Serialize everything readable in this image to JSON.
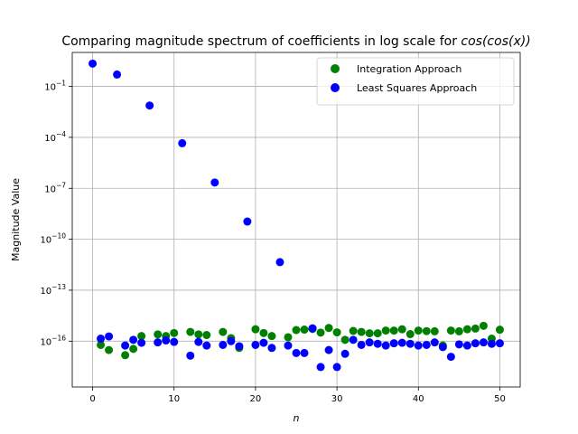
{
  "chart_data": {
    "type": "scatter",
    "title_text": "Comparing magnitude spectrum of coefficients in log scale for ",
    "title_math": "cos(cos(x))",
    "xlabel": "n",
    "ylabel": "Magnitude Value",
    "y_scale": "log",
    "xlim": [
      -2.5,
      52.5
    ],
    "ylim": [
      2e-19,
      10.0
    ],
    "x_ticks": [
      0,
      10,
      20,
      30,
      40,
      50
    ],
    "y_ticks": [
      {
        "value": 0.1,
        "base": "10",
        "exp": "−1"
      },
      {
        "value": 0.0001,
        "base": "10",
        "exp": "−4"
      },
      {
        "value": 1e-07,
        "base": "10",
        "exp": "−7"
      },
      {
        "value": 1e-10,
        "base": "10",
        "exp": "−10"
      },
      {
        "value": 1e-13,
        "base": "10",
        "exp": "−13"
      },
      {
        "value": 1e-16,
        "base": "10",
        "exp": "−16"
      }
    ],
    "grid": true,
    "legend_position": "top-right",
    "series": [
      {
        "name": "Integration Approach",
        "color": "#008000",
        "x": [
          1,
          2,
          4,
          5,
          6,
          8,
          9,
          10,
          12,
          13,
          14,
          16,
          17,
          18,
          20,
          21,
          22,
          24,
          25,
          26,
          27,
          28,
          29,
          30,
          31,
          32,
          33,
          34,
          35,
          36,
          37,
          38,
          39,
          40,
          41,
          42,
          43,
          44,
          45,
          46,
          47,
          48,
          49,
          50
        ],
        "y": [
          6e-17,
          3e-17,
          1.5e-17,
          3.5e-17,
          2e-16,
          2.5e-16,
          2e-16,
          3e-16,
          3.5e-16,
          2.5e-16,
          2.3e-16,
          3.5e-16,
          1.5e-16,
          4e-17,
          5e-16,
          3e-16,
          2e-16,
          1.7e-16,
          4.5e-16,
          4.8e-16,
          5.2e-16,
          3.2e-16,
          6e-16,
          3.3e-16,
          1.2e-16,
          4e-16,
          3.5e-16,
          2.9e-16,
          2.9e-16,
          4.2e-16,
          4.2e-16,
          5e-16,
          2.6e-16,
          4.2e-16,
          3.9e-16,
          3.8e-16,
          5.5e-17,
          4.2e-16,
          3.8e-16,
          5e-16,
          5.5e-16,
          8e-16,
          1.4e-16,
          4.7e-16
        ]
      },
      {
        "name": "Least Squares Approach",
        "color": "#0000ff",
        "x": [
          0,
          1,
          2,
          3,
          4,
          5,
          6,
          7,
          8,
          9,
          10,
          11,
          12,
          13,
          14,
          15,
          16,
          17,
          18,
          19,
          20,
          21,
          22,
          23,
          24,
          25,
          26,
          27,
          28,
          29,
          30,
          31,
          32,
          33,
          34,
          35,
          36,
          37,
          38,
          39,
          40,
          41,
          42,
          43,
          44,
          45,
          46,
          47,
          48,
          49,
          50
        ],
        "y": [
          2.2,
          1.4e-16,
          1.9e-16,
          0.5,
          5.5e-17,
          1.2e-16,
          8e-17,
          0.0075,
          8.5e-17,
          1.1e-16,
          9e-17,
          4.5e-05,
          1.4e-17,
          9e-17,
          5.5e-17,
          2.2e-07,
          6e-17,
          1e-16,
          5e-17,
          1.1e-09,
          6e-17,
          8e-17,
          4e-17,
          4.5e-12,
          5.5e-17,
          2e-17,
          2e-17,
          5.7e-16,
          3e-18,
          3e-17,
          3e-18,
          1.8e-17,
          1.2e-16,
          6e-17,
          8.5e-17,
          7e-17,
          5.5e-17,
          7.5e-17,
          8e-17,
          7e-17,
          5.5e-17,
          6e-17,
          8.5e-17,
          4.5e-17,
          1.2e-17,
          6.5e-17,
          5.5e-17,
          7.5e-17,
          8.5e-17,
          7e-17,
          7.5e-17
        ]
      }
    ]
  }
}
